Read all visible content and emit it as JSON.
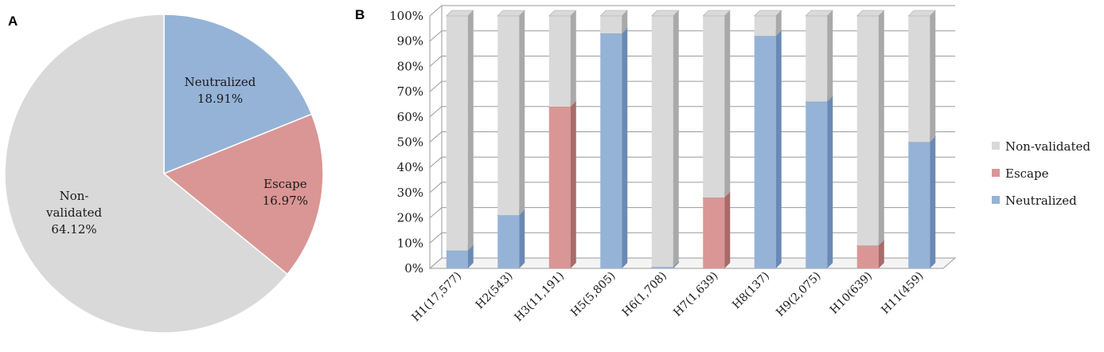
{
  "panels": {
    "a_label": "A",
    "b_label": "B"
  },
  "colors": {
    "non_validated": "#d9d9d9",
    "escape": "#d99694",
    "neutralized": "#95b3d7",
    "escape_dark": "#a86b69",
    "neutralized_dark": "#6a8ab5",
    "non_validated_dark": "#a9a9a9"
  },
  "chart_data": [
    {
      "type": "pie",
      "labels": [
        "Neutralized",
        "Escape",
        "Non-validated"
      ],
      "values": [
        18.91,
        16.97,
        64.12
      ],
      "value_labels": [
        "18.91%",
        "16.97%",
        "64.12%"
      ],
      "label_lines": [
        [
          "Neutralized",
          "18.91%"
        ],
        [
          "Escape",
          "16.97%"
        ],
        [
          "Non-",
          "validated",
          "64.12%"
        ]
      ]
    },
    {
      "type": "bar",
      "stacked": true,
      "categories": [
        "H1(17,577)",
        "H2(543)",
        "H3(11,191)",
        "H5(5,805)",
        "H6(1,708)",
        "H7(1,639)",
        "H8(137)",
        "H9(2,075)",
        "H10(639)",
        "H11(459)"
      ],
      "series": [
        {
          "name": "Neutralized",
          "values": [
            7,
            21,
            0,
            93,
            0.5,
            0,
            92,
            66,
            0,
            50
          ]
        },
        {
          "name": "Escape",
          "values": [
            0,
            0,
            64,
            0,
            0,
            28,
            0,
            0,
            9,
            0
          ]
        },
        {
          "name": "Non-validated",
          "values": [
            93,
            79,
            36,
            7,
            99.5,
            72,
            8,
            34,
            91,
            50
          ]
        }
      ],
      "ylim": [
        0,
        100
      ],
      "yticks": [
        "0%",
        "10%",
        "20%",
        "30%",
        "40%",
        "50%",
        "60%",
        "70%",
        "80%",
        "90%",
        "100%"
      ],
      "legend": {
        "position": "right",
        "entries": [
          "Non-validated",
          "Escape",
          "Neutralized"
        ]
      },
      "grid": true,
      "style": "3d"
    }
  ]
}
